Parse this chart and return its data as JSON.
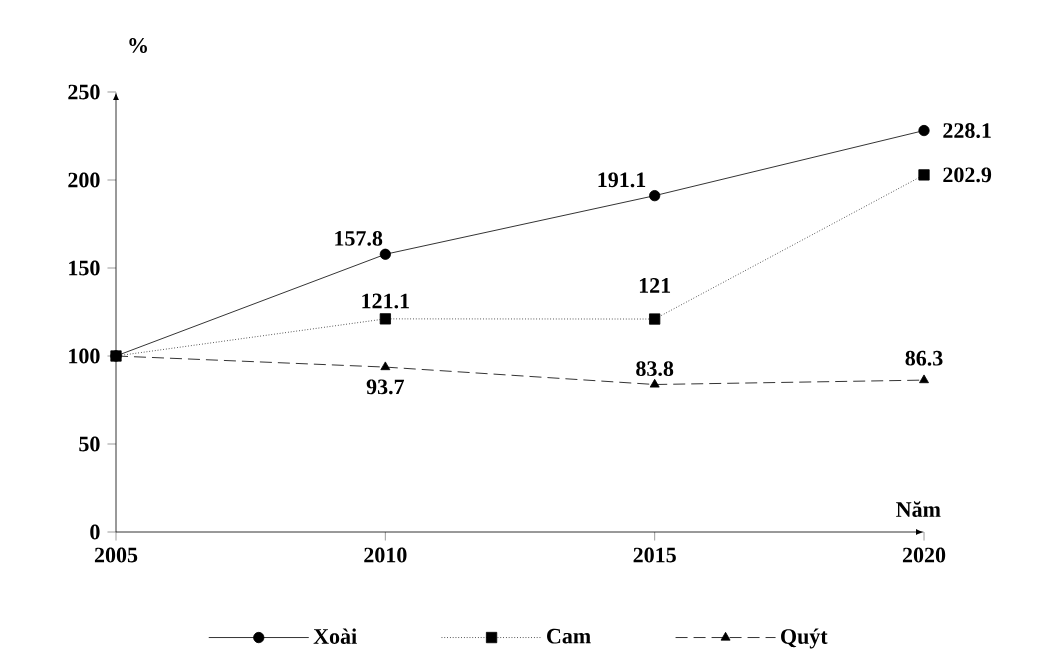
{
  "chart_data": {
    "type": "line",
    "x": [
      2005,
      2010,
      2015,
      2020
    ],
    "xlabel": "Năm",
    "ylabel": "%",
    "xlim": [
      2005,
      2020
    ],
    "xticks": [
      2005,
      2010,
      2015,
      2020
    ],
    "ylim": [
      0,
      250
    ],
    "yticks": [
      0,
      50,
      100,
      150,
      200,
      250
    ],
    "legend": "bottom",
    "grid": false,
    "series": [
      {
        "name": "Xoài",
        "color": "#000000",
        "marker": "circle",
        "line_style": "solid",
        "values": [
          100,
          157.8,
          191.1,
          228.1
        ],
        "value_labels": [
          null,
          "157.8",
          "191.1",
          "228.1"
        ]
      },
      {
        "name": "Cam",
        "color": "#000000",
        "marker": "square",
        "line_style": "dotted",
        "values": [
          100,
          121.1,
          121,
          202.9
        ],
        "value_labels": [
          null,
          "121.1",
          "121",
          "202.9"
        ]
      },
      {
        "name": "Quýt",
        "color": "#000000",
        "marker": "triangle",
        "line_style": "dashed",
        "values": [
          100,
          93.7,
          83.8,
          86.3
        ],
        "value_labels": [
          null,
          "93.7",
          "83.8",
          "86.3"
        ]
      }
    ]
  }
}
